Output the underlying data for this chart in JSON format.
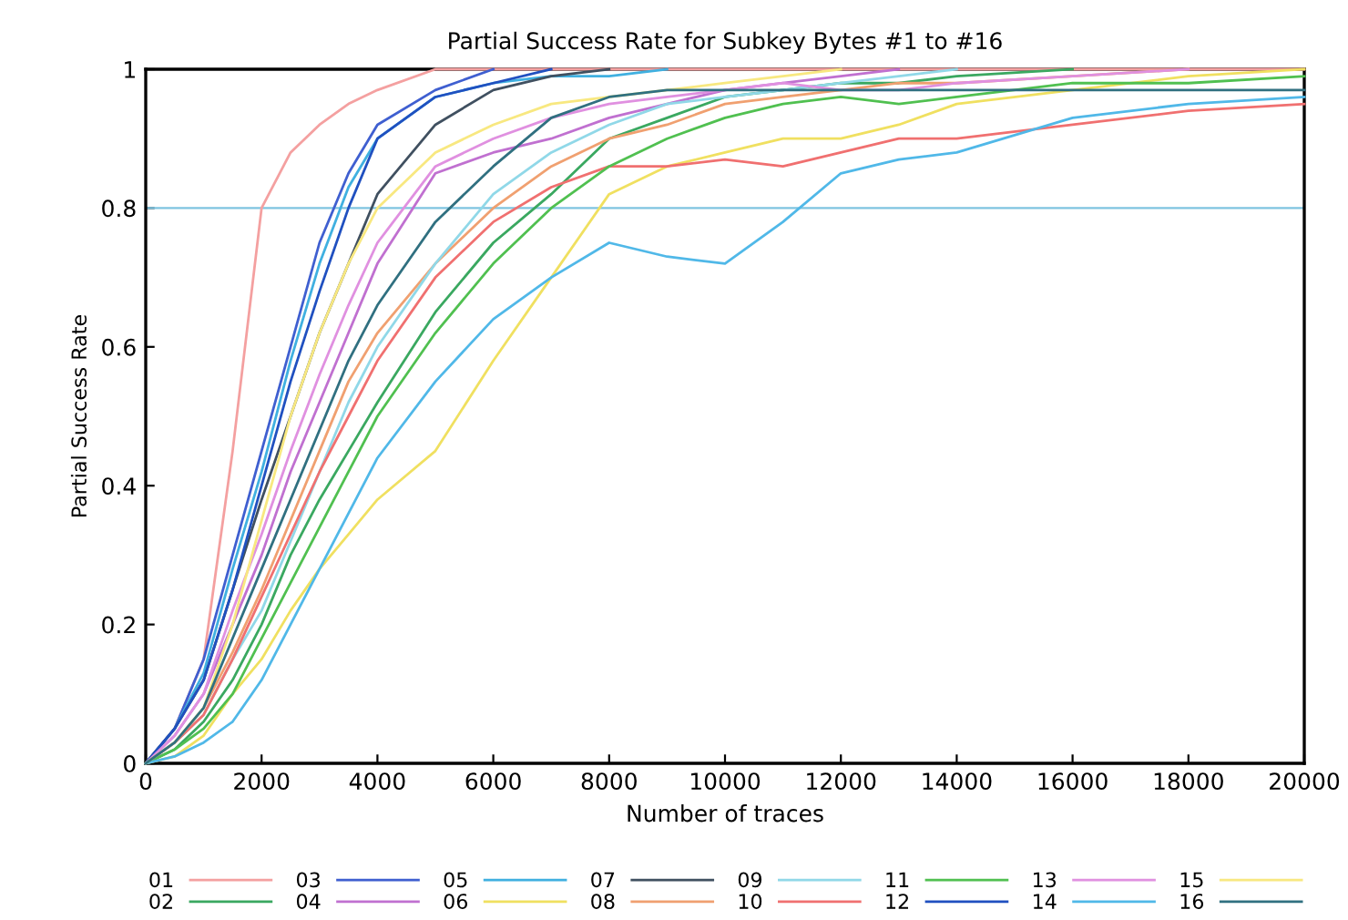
{
  "chart_data": {
    "type": "line",
    "title": "Partial Success Rate for Subkey Bytes #1 to #16",
    "xlabel": "Number of traces",
    "ylabel": "Partial Success Rate",
    "x": [
      0,
      500,
      1000,
      1500,
      2000,
      2500,
      3000,
      3500,
      4000,
      5000,
      6000,
      7000,
      8000,
      9000,
      10000,
      11000,
      12000,
      13000,
      14000,
      16000,
      18000,
      20000
    ],
    "xlim": [
      0,
      20000
    ],
    "xticks": [
      0,
      2000,
      4000,
      6000,
      8000,
      10000,
      12000,
      14000,
      16000,
      18000,
      20000
    ],
    "ylim": [
      0,
      1
    ],
    "yticks": [
      0,
      0.2,
      0.4,
      0.6,
      0.8,
      1
    ],
    "grid": false,
    "legend": "bottom",
    "marker": "none",
    "line_style": "solid",
    "ref_lines": [
      {
        "axis": "y",
        "value": 0.8,
        "color": "#7fc4e0"
      }
    ],
    "series": [
      {
        "name": "01",
        "color": "#f4a0a0",
        "x": [
          0,
          500,
          1000,
          1500,
          2000,
          2500,
          3000,
          3500,
          4000,
          5000,
          20000
        ],
        "values": [
          0,
          0.05,
          0.15,
          0.45,
          0.8,
          0.88,
          0.92,
          0.95,
          0.97,
          1,
          1
        ]
      },
      {
        "name": "02",
        "color": "#3aa860",
        "values": [
          0,
          0.02,
          0.06,
          0.12,
          0.2,
          0.3,
          0.38,
          0.45,
          0.52,
          0.65,
          0.75,
          0.82,
          0.9,
          0.93,
          0.96,
          0.97,
          0.98,
          0.98,
          0.99,
          1,
          null,
          null
        ]
      },
      {
        "name": "03",
        "color": "#3f5fd0",
        "values": [
          0,
          0.05,
          0.15,
          0.3,
          0.45,
          0.6,
          0.75,
          0.85,
          0.92,
          0.97,
          1,
          null,
          null,
          null,
          null,
          null,
          null,
          null,
          null,
          null,
          null,
          null
        ]
      },
      {
        "name": "04",
        "color": "#c070d0",
        "values": [
          0,
          0.04,
          0.1,
          0.2,
          0.3,
          0.42,
          0.52,
          0.62,
          0.72,
          0.85,
          0.88,
          0.9,
          0.93,
          0.95,
          0.97,
          0.98,
          0.99,
          1,
          null,
          null,
          null,
          null
        ]
      },
      {
        "name": "05",
        "color": "#40b0e0",
        "values": [
          0,
          0.05,
          0.13,
          0.28,
          0.42,
          0.58,
          0.72,
          0.83,
          0.9,
          0.96,
          0.98,
          0.99,
          0.99,
          1,
          null,
          null,
          null,
          null,
          null,
          null,
          null,
          null
        ]
      },
      {
        "name": "06",
        "color": "#f0e060",
        "values": [
          0,
          0.01,
          0.04,
          0.1,
          0.15,
          0.22,
          0.28,
          0.33,
          0.38,
          0.45,
          0.58,
          0.7,
          0.82,
          0.86,
          0.88,
          0.9,
          0.9,
          0.92,
          0.95,
          0.97,
          0.99,
          1
        ]
      },
      {
        "name": "07",
        "color": "#405060",
        "values": [
          0,
          0.05,
          0.12,
          0.25,
          0.38,
          0.5,
          0.62,
          0.72,
          0.82,
          0.92,
          0.97,
          0.99,
          1,
          null,
          null,
          null,
          null,
          null,
          null,
          null,
          null,
          null
        ]
      },
      {
        "name": "08",
        "color": "#f0a070",
        "values": [
          0,
          0.03,
          0.08,
          0.16,
          0.25,
          0.35,
          0.45,
          0.55,
          0.62,
          0.72,
          0.8,
          0.86,
          0.9,
          0.92,
          0.95,
          0.96,
          0.97,
          0.98,
          0.98,
          0.99,
          1,
          null
        ]
      },
      {
        "name": "09",
        "color": "#90d8e8",
        "values": [
          0,
          0.03,
          0.07,
          0.15,
          0.22,
          0.32,
          0.42,
          0.52,
          0.6,
          0.72,
          0.82,
          0.88,
          0.92,
          0.95,
          0.96,
          0.97,
          0.98,
          0.99,
          1,
          null,
          null,
          null
        ]
      },
      {
        "name": "10",
        "color": "#f07070",
        "values": [
          0,
          0.03,
          0.07,
          0.15,
          0.24,
          0.33,
          0.42,
          0.5,
          0.58,
          0.7,
          0.78,
          0.83,
          0.86,
          0.86,
          0.87,
          0.86,
          0.88,
          0.9,
          0.9,
          0.92,
          0.94,
          0.95
        ]
      },
      {
        "name": "11",
        "color": "#50c050",
        "values": [
          0,
          0.02,
          0.05,
          0.1,
          0.18,
          0.26,
          0.34,
          0.42,
          0.5,
          0.62,
          0.72,
          0.8,
          0.86,
          0.9,
          0.93,
          0.95,
          0.96,
          0.95,
          0.96,
          0.98,
          0.98,
          0.99
        ]
      },
      {
        "name": "12",
        "color": "#2050c0",
        "values": [
          0,
          0.05,
          0.12,
          0.25,
          0.4,
          0.55,
          0.68,
          0.8,
          0.9,
          0.96,
          0.98,
          1,
          null,
          null,
          null,
          null,
          null,
          null,
          null,
          null,
          null,
          null
        ]
      },
      {
        "name": "13",
        "color": "#e090e0",
        "values": [
          0,
          0.04,
          0.1,
          0.22,
          0.33,
          0.45,
          0.56,
          0.66,
          0.75,
          0.86,
          0.9,
          0.93,
          0.95,
          0.96,
          0.97,
          0.98,
          0.97,
          0.97,
          0.98,
          0.99,
          1,
          null
        ]
      },
      {
        "name": "14",
        "color": "#50b8e8",
        "values": [
          0,
          0.01,
          0.03,
          0.06,
          0.12,
          0.2,
          0.28,
          0.36,
          0.44,
          0.55,
          0.64,
          0.7,
          0.75,
          0.73,
          0.72,
          0.78,
          0.85,
          0.87,
          0.88,
          0.93,
          0.95,
          0.96
        ]
      },
      {
        "name": "15",
        "color": "#f8e880",
        "values": [
          0,
          0.03,
          0.08,
          0.2,
          0.35,
          0.5,
          0.62,
          0.72,
          0.8,
          0.88,
          0.92,
          0.95,
          0.96,
          0.97,
          0.98,
          0.99,
          1,
          null,
          null,
          null,
          null,
          null
        ]
      },
      {
        "name": "16",
        "color": "#307080",
        "values": [
          0,
          0.03,
          0.08,
          0.18,
          0.28,
          0.38,
          0.48,
          0.58,
          0.66,
          0.78,
          0.86,
          0.93,
          0.96,
          0.97,
          0.97,
          0.97,
          0.97,
          0.97,
          0.97,
          0.97,
          0.97,
          0.97
        ]
      }
    ]
  }
}
